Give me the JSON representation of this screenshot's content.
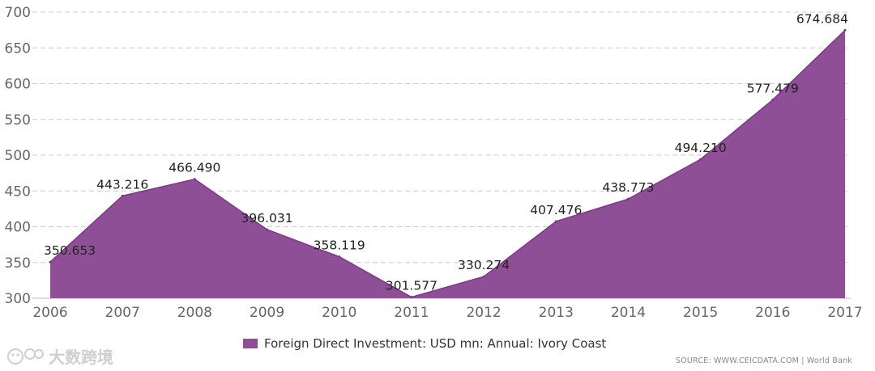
{
  "chart_data": {
    "type": "area",
    "x": [
      "2006",
      "2007",
      "2008",
      "2009",
      "2010",
      "2011",
      "2012",
      "2013",
      "2014",
      "2015",
      "2016",
      "2017"
    ],
    "series": [
      {
        "name": "Foreign Direct Investment: USD mn: Annual: Ivory Coast",
        "values": [
          350.653,
          443.216,
          466.49,
          396.031,
          358.119,
          301.577,
          330.274,
          407.476,
          438.773,
          494.21,
          577.479,
          674.684
        ],
        "labels": [
          "350.653",
          "443.216",
          "466.490",
          "396.031",
          "358.119",
          "301.577",
          "330.274",
          "407.476",
          "438.773",
          "494.210",
          "577.479",
          "674.684"
        ]
      }
    ],
    "y_ticks": [
      300,
      350,
      400,
      450,
      500,
      550,
      600,
      650,
      700
    ],
    "ylim": [
      300,
      700
    ],
    "grid": true,
    "grid_style": "dashed",
    "legend_placement": "bottom-center",
    "colors": {
      "fill": "#8e4f96",
      "line": "#7b3a84",
      "grid": "#cccccc",
      "axis": "#bbbbbb"
    }
  },
  "legend": {
    "label": "Foreign Direct Investment: USD mn: Annual: Ivory Coast"
  },
  "source": "SOURCE: WWW.CEICDATA.COM | World Bank",
  "watermark": {
    "text": "大数跨境"
  }
}
